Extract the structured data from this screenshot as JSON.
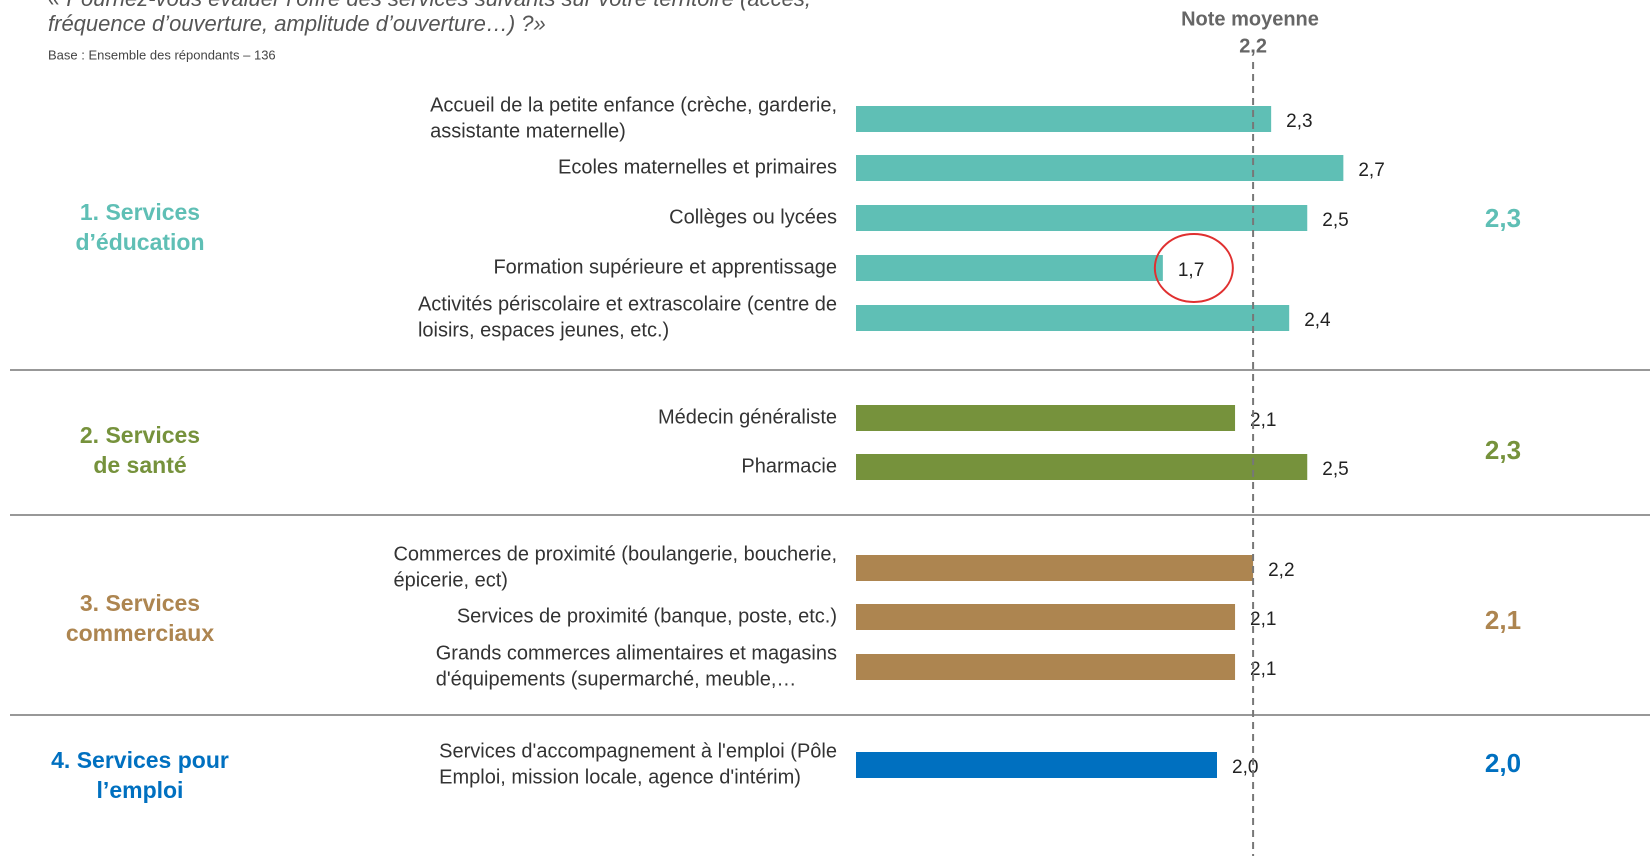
{
  "chart_data": {
    "type": "bar",
    "orientation": "horizontal",
    "title_lines": [
      "« Pourriez-vous évaluer l’offre des services suivants sur votre territoire (accès,",
      "fréquence d’ouverture, amplitude d’ouverture…) ?»"
    ],
    "subtitle": "Base : Ensemble des répondants – 136",
    "mean": {
      "label": "Note moyenne",
      "value": 2.2,
      "value_label": "2,2"
    },
    "xlim": [
      0,
      4
    ],
    "groups": [
      {
        "name_lines": [
          "1. Services",
          "d’éducation"
        ],
        "color": "#5fbfb5",
        "score": 2.3,
        "score_label": "2,3",
        "categories": [
          [
            "Accueil de la petite enfance (crèche, garderie,",
            "assistante maternelle)"
          ],
          [
            "Ecoles maternelles et primaires"
          ],
          [
            "Collèges ou lycées"
          ],
          [
            "Formation supérieure et apprentissage"
          ],
          [
            "Activités périscolaire et extrascolaire (centre de",
            "loisirs, espaces jeunes, etc.)"
          ]
        ],
        "values": [
          2.3,
          2.7,
          2.5,
          1.7,
          2.4
        ],
        "value_labels": [
          "2,3",
          "2,7",
          "2,5",
          "1,7",
          "2,4"
        ]
      },
      {
        "name_lines": [
          "2. Services",
          "de santé"
        ],
        "color": "#76923c",
        "score": 2.3,
        "score_label": "2,3",
        "categories": [
          [
            "Médecin généraliste"
          ],
          [
            "Pharmacie"
          ]
        ],
        "values": [
          2.1,
          2.5
        ],
        "value_labels": [
          "2,1",
          "2,5"
        ]
      },
      {
        "name_lines": [
          "3. Services",
          "commerciaux"
        ],
        "color": "#ad8550",
        "score": 2.1,
        "score_label": "2,1",
        "categories": [
          [
            "Commerces de proximité (boulangerie, boucherie,",
            "épicerie, ect)"
          ],
          [
            "Services de proximité (banque, poste, etc.)"
          ],
          [
            "Grands commerces alimentaires et magasins",
            "d'équipements (supermarché, meuble,…"
          ]
        ],
        "values": [
          2.2,
          2.1,
          2.1
        ],
        "value_labels": [
          "2,2",
          "2,1",
          "2,1"
        ]
      },
      {
        "name_lines": [
          "4. Services pour",
          "l’emploi"
        ],
        "color": "#0070c0",
        "score": 2.0,
        "score_label": "2,0",
        "categories": [
          [
            "Services d'accompagnement à l'emploi (Pôle",
            "Emploi, mission locale, agence d'intérim)"
          ]
        ],
        "values": [
          2.0
        ],
        "value_labels": [
          "2,0"
        ]
      }
    ]
  }
}
